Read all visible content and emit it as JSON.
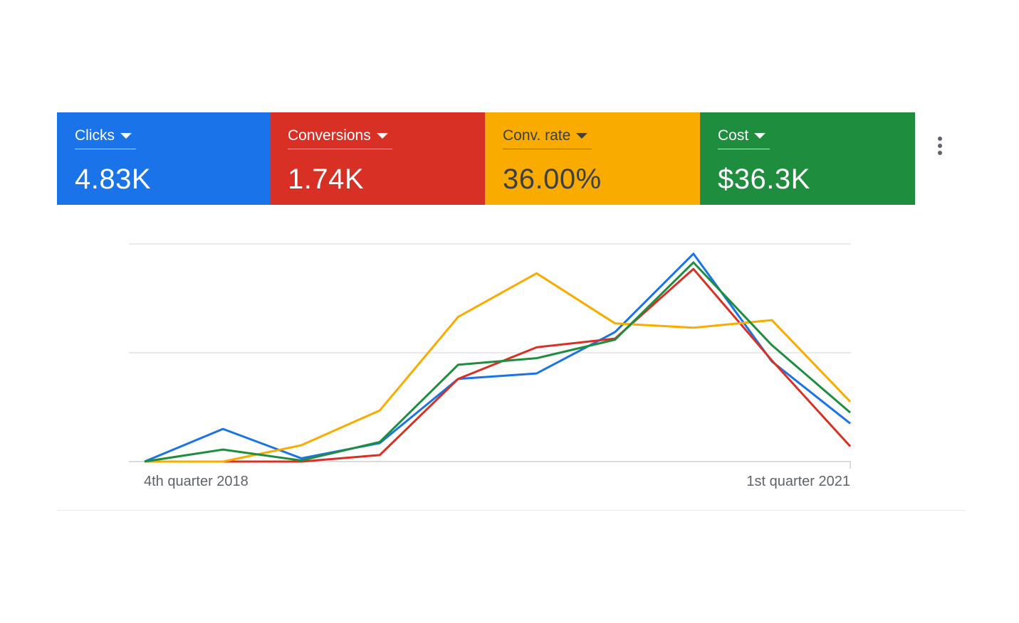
{
  "scorecards": [
    {
      "label": "Clicks",
      "value": "4.83K",
      "bg": "#1a73e8",
      "text_color": "#ffffff"
    },
    {
      "label": "Conversions",
      "value": "1.74K",
      "bg": "#d93025",
      "text_color": "#ffffff"
    },
    {
      "label": "Conv. rate",
      "value": "36.00%",
      "bg": "#f9ab00",
      "text_color": "#3c4043"
    },
    {
      "label": "Cost",
      "value": "$36.3K",
      "bg": "#1e8e3e",
      "text_color": "#ffffff"
    }
  ],
  "more_menu_icon": "more-vert-icon",
  "chart_data": {
    "type": "line",
    "x_labels": {
      "first": "4th quarter 2018",
      "last": "1st quarter 2021"
    },
    "points_per_series": 10,
    "y_range": [
      0,
      100
    ],
    "grid": true,
    "series": [
      {
        "metric": "Clicks",
        "color": "#1a73e8",
        "values": [
          0,
          15,
          1.5,
          8.5,
          38,
          40.5,
          59.5,
          95.5,
          46,
          17.5
        ]
      },
      {
        "metric": "Conversions",
        "color": "#d93025",
        "values": [
          0,
          0,
          0,
          3,
          38,
          52.5,
          56.5,
          88.5,
          46.5,
          7
        ]
      },
      {
        "metric": "Conv. rate",
        "color": "#f9ab00",
        "values": [
          0,
          0,
          7.5,
          23.5,
          66.5,
          86.5,
          63.5,
          61.5,
          65,
          27.5
        ]
      },
      {
        "metric": "Cost",
        "color": "#1e8e3e",
        "values": [
          0,
          5.5,
          0.5,
          9,
          44.5,
          47.5,
          56,
          91.5,
          53.5,
          22.5
        ]
      }
    ]
  }
}
